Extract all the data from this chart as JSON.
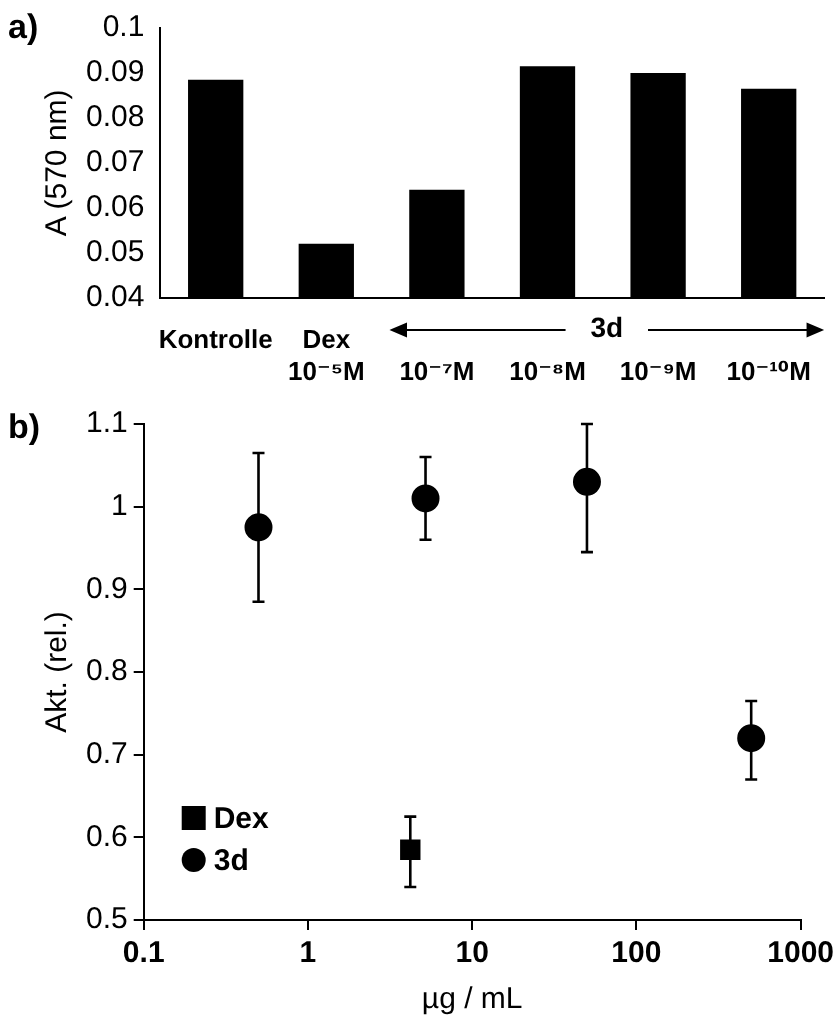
{
  "chart_data": [
    {
      "type": "bar",
      "title": "a)",
      "ylabel": "A (570 nm)",
      "categories": [
        "Kontrolle",
        "Dex\n10⁻⁵M",
        "\n10⁻⁷M",
        "\n10⁻⁸M",
        "\n10⁻⁹M",
        "\n10⁻¹⁰M"
      ],
      "values": [
        0.0885,
        0.052,
        0.064,
        0.0915,
        0.09,
        0.0865
      ],
      "color": "#000000",
      "ylim": [
        0.04,
        0.1
      ],
      "yticks": [
        0.04,
        0.05,
        0.06,
        0.07,
        0.08,
        0.09,
        0.1
      ],
      "grid": false,
      "legend": false,
      "annotations": [
        "3d"
      ]
    },
    {
      "type": "scatter",
      "title": "b)",
      "xlabel": "µg / mL",
      "ylabel": "Akt. (rel.)",
      "log": "x",
      "xlim": [
        0.1,
        1000
      ],
      "xticks": [
        0.1,
        1,
        10,
        100,
        1000
      ],
      "ylim": [
        0.5,
        1.1
      ],
      "yticks": [
        0.5,
        0.6,
        0.7,
        0.8,
        0.9,
        1,
        1.1
      ],
      "grid": false,
      "legend": "bottom left",
      "series": [
        {
          "name": "Dex",
          "color": "#000000",
          "marker": "square",
          "x": [
            4.2
          ],
          "values": [
            0.585
          ],
          "errors": [
            [
              0.54,
              0.625
            ]
          ]
        },
        {
          "name": "3d",
          "color": "#000000",
          "marker": "circle",
          "x": [
            0.5,
            5.2,
            50,
            500
          ],
          "values": [
            0.975,
            1.01,
            1.03,
            0.72
          ],
          "errors": [
            [
              0.885,
              1.065
            ],
            [
              0.96,
              1.06
            ],
            [
              0.945,
              1.1
            ],
            [
              0.67,
              0.765
            ]
          ]
        }
      ]
    }
  ]
}
